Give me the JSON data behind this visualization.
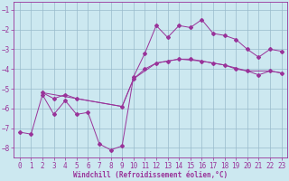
{
  "title": "",
  "xlabel": "Windchill (Refroidissement éolien,°C)",
  "bg_color": "#cce8f0",
  "line_color": "#993399",
  "grid_color": "#99bbcc",
  "xlim": [
    -0.5,
    23.5
  ],
  "ylim": [
    -8.5,
    -0.6
  ],
  "xticks": [
    0,
    1,
    2,
    3,
    4,
    5,
    6,
    7,
    8,
    9,
    10,
    11,
    12,
    13,
    14,
    15,
    16,
    17,
    18,
    19,
    20,
    21,
    22,
    23
  ],
  "yticks": [
    -8,
    -7,
    -6,
    -5,
    -4,
    -3,
    -2,
    -1
  ],
  "line1_x": [
    0,
    1,
    2,
    3,
    4,
    5,
    6,
    7,
    8,
    9,
    10,
    11,
    12,
    13,
    14,
    15,
    16,
    17,
    18,
    19,
    20,
    21,
    22,
    23
  ],
  "line1_y": [
    -7.2,
    -7.3,
    -5.3,
    -6.3,
    -5.6,
    -6.3,
    -6.2,
    -7.8,
    -8.1,
    -7.9,
    -4.4,
    -3.2,
    -1.8,
    -2.4,
    -1.8,
    -1.9,
    -1.5,
    -2.2,
    -2.3,
    -2.5,
    -3.0,
    -3.4,
    -3.0,
    -3.1
  ],
  "line2_x": [
    2,
    3,
    4,
    5,
    9,
    10,
    11,
    12,
    13,
    14,
    15,
    16,
    17,
    18,
    19,
    20,
    21,
    22,
    23
  ],
  "line2_y": [
    -5.2,
    -5.5,
    -5.3,
    -5.5,
    -5.9,
    -4.5,
    -4.0,
    -3.7,
    -3.6,
    -3.5,
    -3.5,
    -3.6,
    -3.7,
    -3.8,
    -4.0,
    -4.1,
    -4.3,
    -4.1,
    -4.2
  ],
  "line3_x": [
    2,
    5,
    9,
    10,
    12,
    14,
    16,
    18,
    20,
    22,
    23
  ],
  "line3_y": [
    -5.2,
    -5.5,
    -5.9,
    -4.5,
    -3.7,
    -3.5,
    -3.6,
    -3.8,
    -4.1,
    -4.1,
    -4.2
  ],
  "marker": "D",
  "marker_size": 2.0,
  "linewidth": 0.7,
  "tick_fontsize": 5.5,
  "xlabel_fontsize": 5.5
}
